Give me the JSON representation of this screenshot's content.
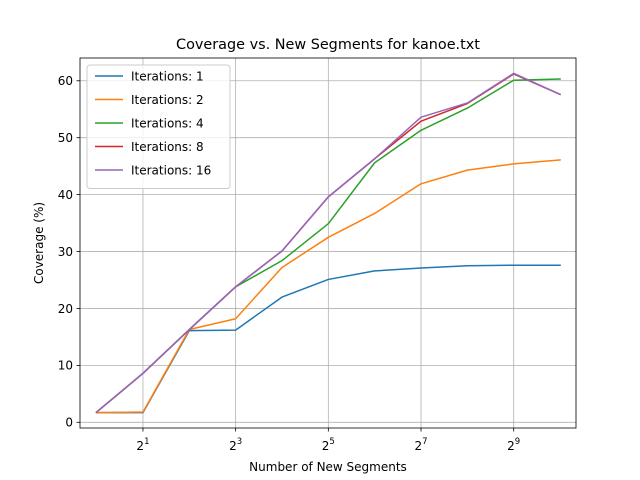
{
  "chart_data": {
    "type": "line",
    "title": "Coverage vs. New Segments for kanoe.txt",
    "xlabel": "Number of New Segments",
    "ylabel": "Coverage (%)",
    "x_scale": "log2",
    "x": [
      1,
      2,
      4,
      8,
      16,
      32,
      64,
      128,
      256,
      512,
      1024
    ],
    "xlim": [
      0.78,
      1300
    ],
    "ylim": [
      -1,
      64
    ],
    "x_ticks": [
      {
        "value": 2,
        "base": "2",
        "exp": "1"
      },
      {
        "value": 8,
        "base": "2",
        "exp": "3"
      },
      {
        "value": 32,
        "base": "2",
        "exp": "5"
      },
      {
        "value": 128,
        "base": "2",
        "exp": "7"
      },
      {
        "value": 512,
        "base": "2",
        "exp": "9"
      }
    ],
    "y_ticks": [
      0,
      10,
      20,
      30,
      40,
      50,
      60
    ],
    "grid": true,
    "legend_position": "top-left",
    "series": [
      {
        "name": "Iterations: 1",
        "color": "#1f77b4",
        "values": [
          1.7,
          1.7,
          16.1,
          16.2,
          22.0,
          25.1,
          26.6,
          27.1,
          27.5,
          27.6,
          27.6
        ]
      },
      {
        "name": "Iterations: 2",
        "color": "#ff7f0e",
        "values": [
          1.7,
          1.8,
          16.3,
          18.2,
          27.2,
          32.5,
          36.7,
          41.9,
          44.3,
          45.4,
          46.1
        ]
      },
      {
        "name": "Iterations: 4",
        "color": "#2ca02c",
        "values": [
          1.8,
          8.6,
          16.3,
          23.8,
          28.4,
          34.9,
          45.6,
          51.3,
          55.2,
          60.1,
          60.3
        ]
      },
      {
        "name": "Iterations: 8",
        "color": "#d62728",
        "values": [
          1.8,
          8.6,
          16.3,
          23.8,
          30.1,
          39.6,
          46.3,
          52.9,
          56.0,
          61.2,
          57.6
        ]
      },
      {
        "name": "Iterations: 16",
        "color": "#9467bd",
        "values": [
          1.8,
          8.6,
          16.3,
          23.8,
          30.1,
          39.6,
          46.3,
          53.6,
          56.1,
          61.3,
          57.6
        ]
      }
    ]
  }
}
